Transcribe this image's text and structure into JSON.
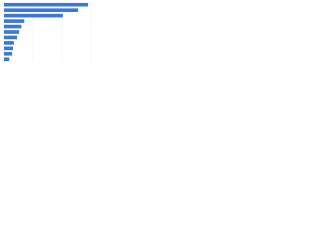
{
  "chart_data": {
    "type": "barh",
    "categories": [
      null,
      null,
      null,
      null,
      null,
      null,
      null,
      null,
      null,
      null,
      null
    ],
    "values": [
      29,
      25.5,
      20.3,
      7,
      6,
      5.2,
      4.5,
      3.4,
      3.1,
      2.8,
      1.8
    ],
    "color": "#3a78d6",
    "xlim": [
      0,
      30
    ],
    "xticks": [
      0,
      10,
      20,
      30
    ],
    "grid": true
  }
}
